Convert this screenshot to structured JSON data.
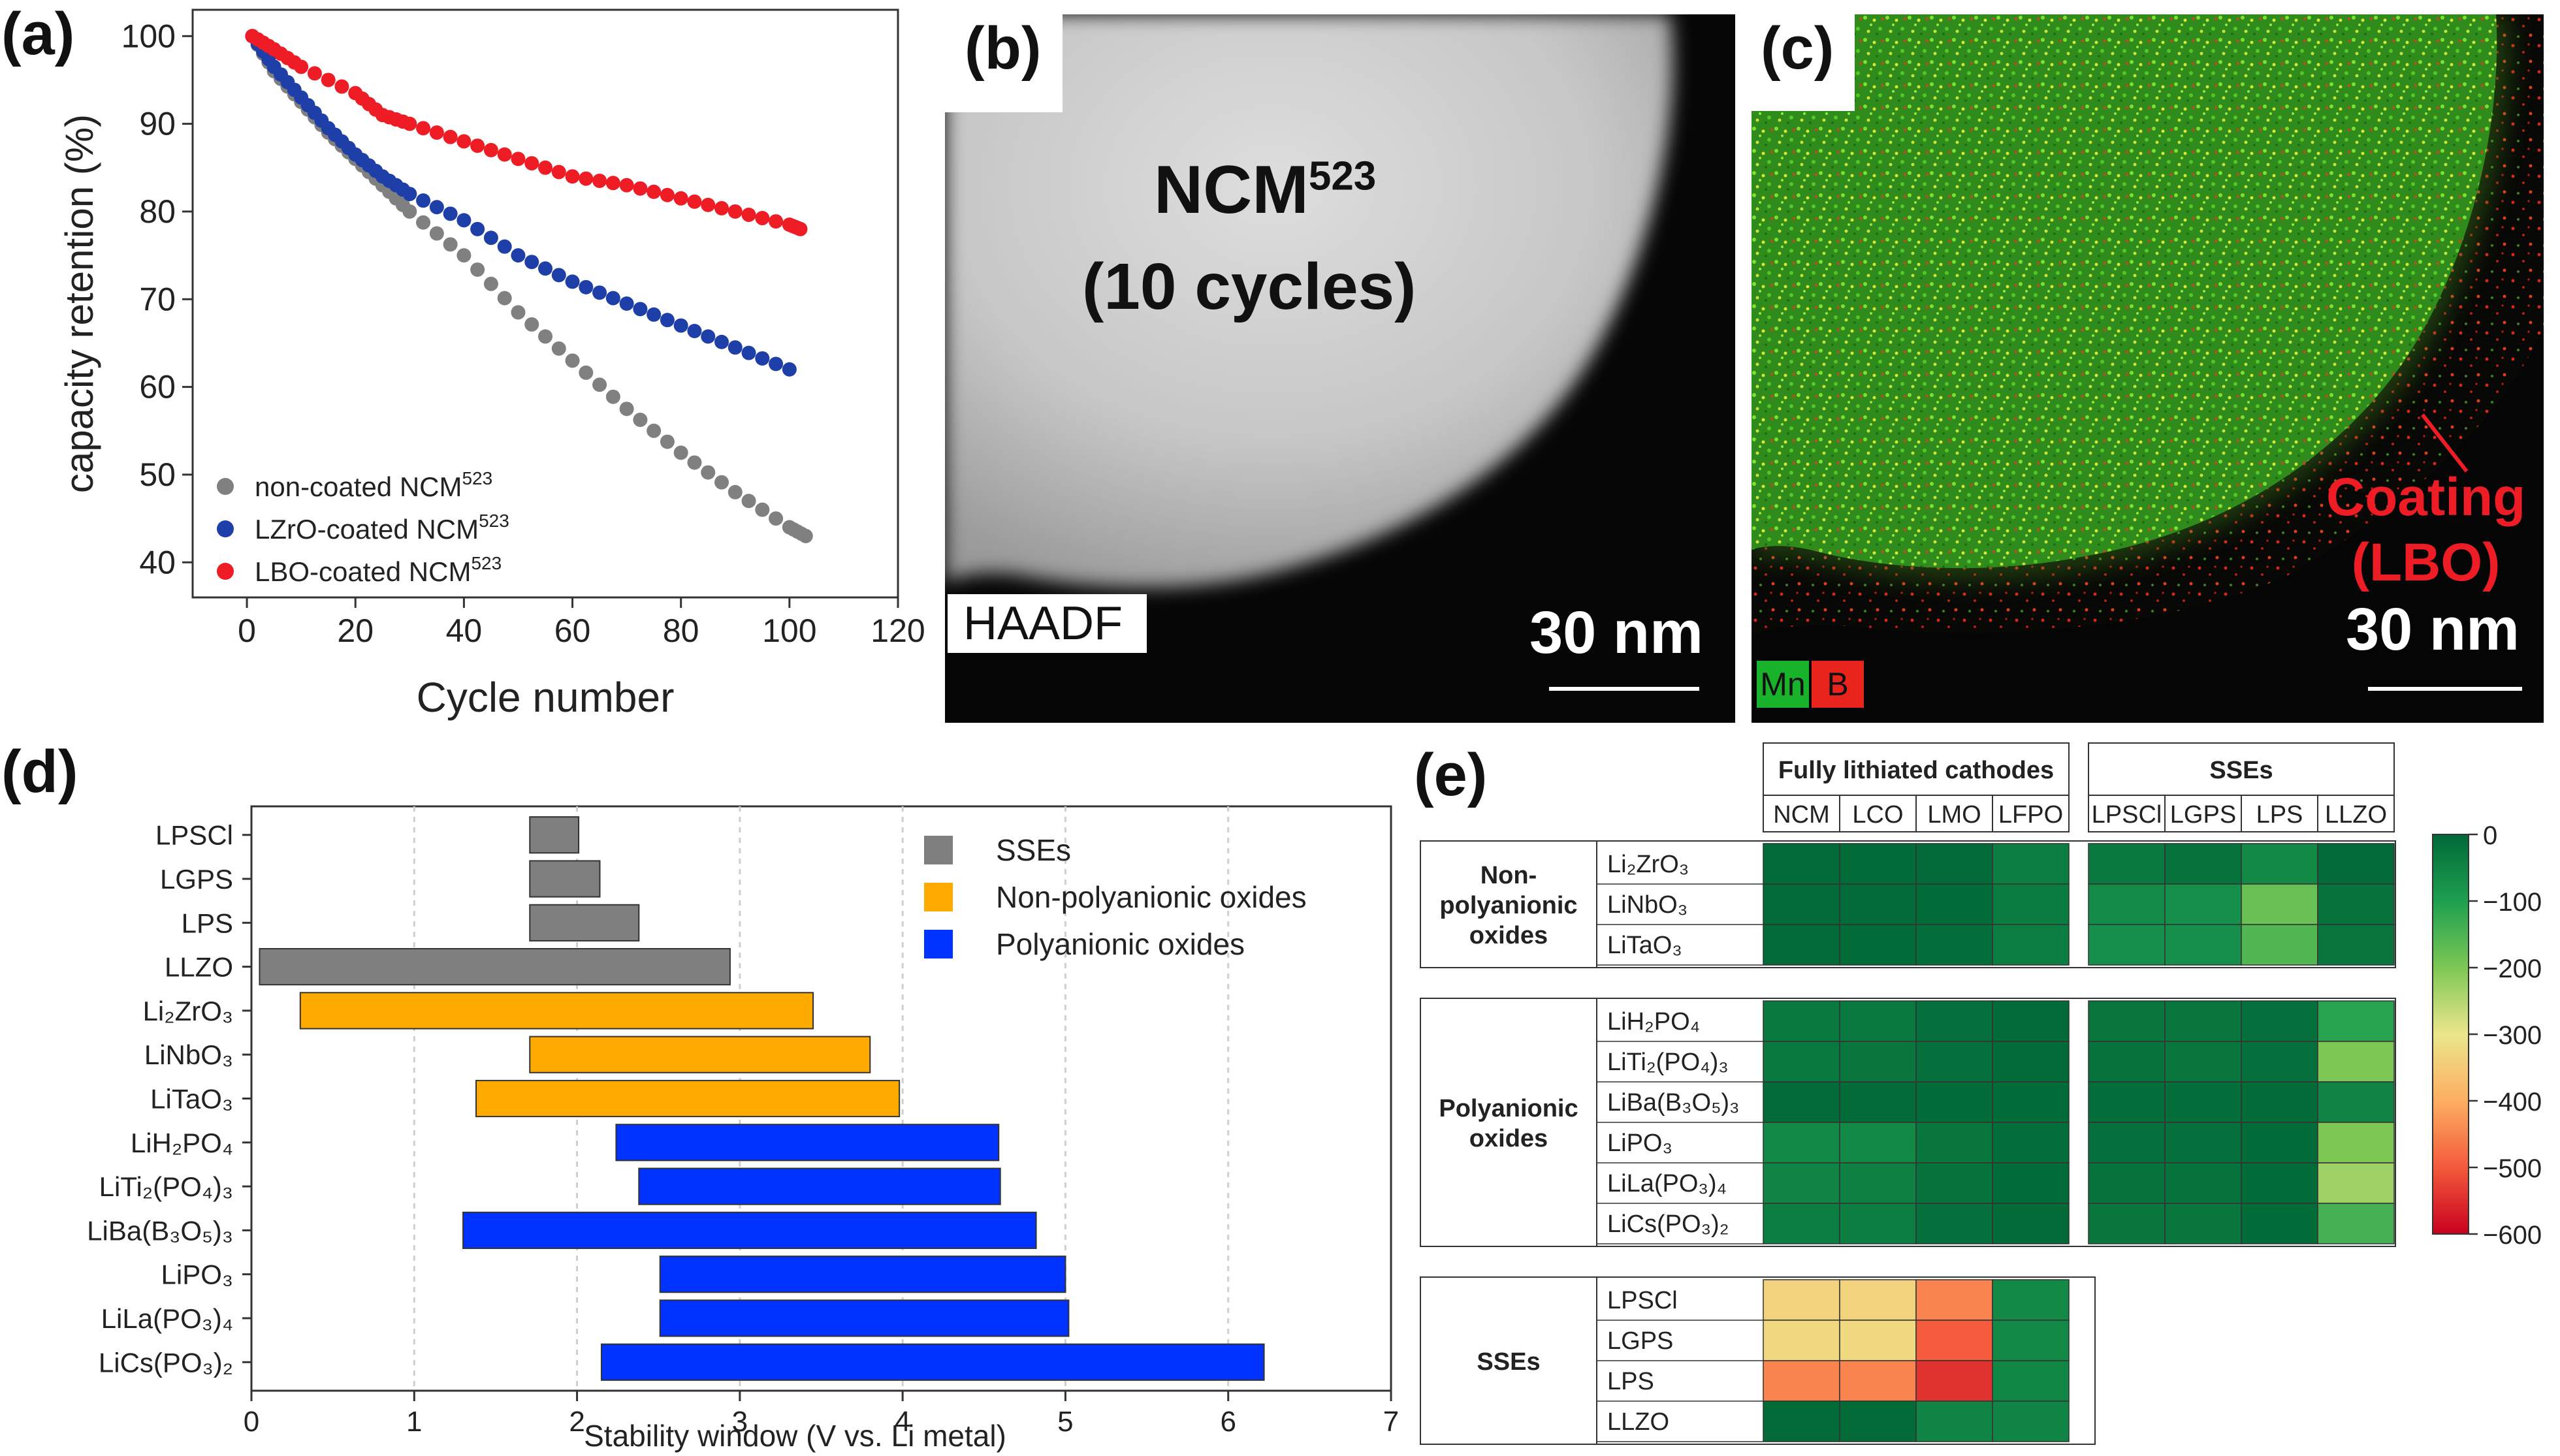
{
  "panels": {
    "a": {
      "letter": "(a)"
    },
    "b": {
      "letter": "(b)",
      "title": "NCM",
      "title_sup": "523",
      "subtitle": "(10 cycles)",
      "mode_label": "HAADF",
      "scale_label": "30 nm"
    },
    "c": {
      "letter": "(c)",
      "annotation_line1": "Coating",
      "annotation_line2": "(LBO)",
      "scale_label": "30 nm",
      "legend_mn": "Mn",
      "legend_b": "B"
    },
    "d": {
      "letter": "(d)"
    },
    "e": {
      "letter": "(e)"
    }
  },
  "colors": {
    "gray": "#808080",
    "blue": "#1f3fa8",
    "red": "#ee1c25",
    "ssebar": "#7f7f7f",
    "orange": "#ffaa00",
    "polyblue": "#0033ff",
    "mn": "#18b22b",
    "b": "#e8241c"
  },
  "chart_data": [
    {
      "type": "scatter",
      "id": "a",
      "xlabel": "Cycle number",
      "ylabel": "capacity retention (%)",
      "xlim": [
        -10,
        120
      ],
      "ylim": [
        36,
        103
      ],
      "xticks": [
        0,
        20,
        40,
        60,
        80,
        100,
        120
      ],
      "yticks": [
        40,
        50,
        60,
        70,
        80,
        90,
        100
      ],
      "series": [
        {
          "name": "non-coated NCM",
          "sup": "523",
          "x": [
            1,
            5,
            10,
            15,
            20,
            25,
            30,
            40,
            50,
            60,
            70,
            80,
            90,
            100,
            103
          ],
          "values": [
            100,
            96,
            92.5,
            89,
            86,
            83,
            80,
            75,
            68.5,
            63,
            57.5,
            52.5,
            48,
            44,
            43
          ]
        },
        {
          "name": "LZrO-coated NCM",
          "sup": "523",
          "x": [
            1,
            5,
            10,
            15,
            20,
            25,
            30,
            40,
            50,
            60,
            70,
            80,
            90,
            100
          ],
          "values": [
            100,
            96.5,
            93,
            89.5,
            86.5,
            84,
            82,
            79,
            75,
            72,
            69.5,
            67,
            64.5,
            62
          ]
        },
        {
          "name": "LBO-coated NCM",
          "sup": "523",
          "x": [
            1,
            5,
            10,
            20,
            25,
            30,
            40,
            50,
            60,
            70,
            80,
            90,
            100,
            102
          ],
          "values": [
            100,
            98.5,
            96.5,
            93.5,
            91,
            90,
            88,
            86,
            84,
            83,
            81.5,
            80,
            78.5,
            78
          ]
        }
      ]
    },
    {
      "type": "bar",
      "id": "d",
      "orientation": "horizontal",
      "xlabel": "Stability window (V vs. Li metal)",
      "xlim": [
        0,
        7
      ],
      "xticks": [
        0,
        1,
        2,
        3,
        4,
        5,
        6,
        7
      ],
      "legend": [
        "SSEs",
        "Non-polyanionic oxides",
        "Polyanionic oxides"
      ],
      "categories": [
        "LPSCl",
        "LGPS",
        "LPS",
        "LLZO",
        "Li₂ZrO₃",
        "LiNbO₃",
        "LiTaO₃",
        "LiH₂PO₄",
        "LiTi₂(PO₄)₃",
        "LiBa(B₃O₅)₃",
        "LiPO₃",
        "LiLa(PO₃)₄",
        "LiCs(PO₃)₂"
      ],
      "groups": [
        0,
        0,
        0,
        0,
        1,
        1,
        1,
        2,
        2,
        2,
        2,
        2,
        2
      ],
      "low": [
        1.71,
        1.71,
        1.71,
        0.05,
        0.3,
        1.71,
        1.38,
        2.24,
        2.38,
        1.3,
        2.51,
        2.51,
        2.15
      ],
      "high": [
        2.01,
        2.14,
        2.38,
        2.94,
        3.45,
        3.8,
        3.98,
        4.59,
        4.6,
        4.82,
        5.0,
        5.02,
        6.22
      ]
    },
    {
      "type": "heatmap",
      "id": "e",
      "col_group_1": "Fully lithiated cathodes",
      "col_group_2": "SSEs",
      "cols_1": [
        "NCM",
        "LCO",
        "LMO",
        "LFPO"
      ],
      "cols_2": [
        "LPSCl",
        "LGPS",
        "LPS",
        "LLZO"
      ],
      "row_groups": [
        {
          "label": [
            "Non-",
            "polyanionic",
            "oxides"
          ],
          "rows": [
            "Li₂ZrO₃",
            "LiNbO₃",
            "LiTaO₃"
          ]
        },
        {
          "label": [
            "Polyanionic",
            "oxides"
          ],
          "rows": [
            "LiH₂PO₄",
            "LiTi₂(PO₄)₃",
            "LiBa(B₃O₅)₃",
            "LiPO₃",
            "LiLa(PO₃)₄",
            "LiCs(PO₃)₂"
          ]
        },
        {
          "label": [
            "SSEs"
          ],
          "rows": [
            "LPSCl",
            "LGPS",
            "LPS",
            "LLZO"
          ]
        }
      ],
      "values_1": [
        [
          -5,
          -8,
          -6,
          -40
        ],
        [
          -5,
          -6,
          -8,
          -35
        ],
        [
          -6,
          -8,
          -10,
          -40
        ],
        [
          -30,
          -30,
          -15,
          -5
        ],
        [
          -30,
          -25,
          -15,
          -5
        ],
        [
          -5,
          -5,
          -8,
          -8
        ],
        [
          -60,
          -60,
          -25,
          -10
        ],
        [
          -50,
          -45,
          -20,
          -8
        ],
        [
          -40,
          -40,
          -15,
          -5
        ],
        [
          -335,
          -335,
          -450,
          -60
        ],
        [
          -325,
          -325,
          -500,
          -60
        ],
        [
          -450,
          -450,
          -545,
          -55
        ],
        [
          -5,
          -5,
          -50,
          -50
        ]
      ],
      "values_2": [
        [
          -30,
          -20,
          -60,
          -5
        ],
        [
          -65,
          -70,
          -180,
          -20
        ],
        [
          -70,
          -70,
          -155,
          -25
        ],
        [
          -25,
          -25,
          -15,
          -110
        ],
        [
          -20,
          -25,
          -15,
          -200
        ],
        [
          -10,
          -10,
          -5,
          -50
        ],
        [
          -15,
          -15,
          -8,
          -200
        ],
        [
          -20,
          -20,
          -8,
          -230
        ],
        [
          -25,
          -25,
          -8,
          -140
        ],
        null,
        null,
        null,
        null
      ],
      "colorbar_ticks": [
        0,
        -100,
        -200,
        -300,
        -400,
        -500,
        -600
      ],
      "colorbar_range": [
        -600,
        0
      ]
    }
  ]
}
